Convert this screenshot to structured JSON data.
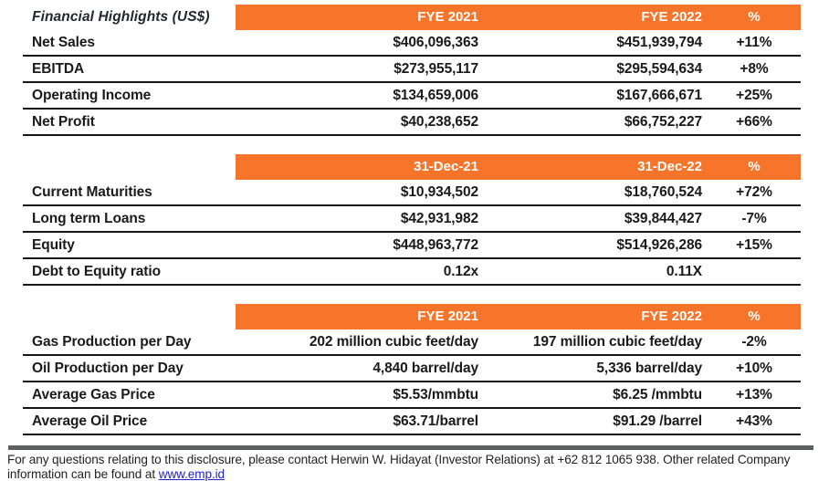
{
  "colors": {
    "accent_orange": "#F7752B",
    "line_black": "#151515",
    "footer_bar_gray": "#5E5F61",
    "link_blue": "#2222CC"
  },
  "tables": [
    {
      "title": "Financial Highlights (US$)",
      "headers": {
        "col1": "FYE 2021",
        "col2": "FYE 2022",
        "pct": "%"
      },
      "rows": [
        {
          "label": "Net Sales",
          "v1": "$406,096,363",
          "v2": "$451,939,794",
          "pct": "+11%"
        },
        {
          "label": "EBITDA",
          "v1": "$273,955,117",
          "v2": "$295,594,634",
          "pct": "+8%"
        },
        {
          "label": "Operating Income",
          "v1": "$134,659,006",
          "v2": "$167,666,671",
          "pct": "+25%"
        },
        {
          "label": "Net Profit",
          "v1": "$40,238,652",
          "v2": "$66,752,227",
          "pct": "+66%"
        }
      ]
    },
    {
      "title": "",
      "headers": {
        "col1": "31-Dec-21",
        "col2": "31-Dec-22",
        "pct": "%"
      },
      "rows": [
        {
          "label": "Current Maturities",
          "v1": "$10,934,502",
          "v2": "$18,760,524",
          "pct": "+72%"
        },
        {
          "label": "Long term Loans",
          "v1": "$42,931,982",
          "v2": "$39,844,427",
          "pct": "-7%"
        },
        {
          "label": "Equity",
          "v1": "$448,963,772",
          "v2": "$514,926,286",
          "pct": "+15%"
        },
        {
          "label": "Debt to Equity ratio",
          "v1": "0.12x",
          "v2": "0.11X",
          "pct": ""
        }
      ]
    },
    {
      "title": "",
      "headers": {
        "col1": "FYE 2021",
        "col2": "FYE 2022",
        "pct": "%"
      },
      "rows": [
        {
          "label": "Gas Production per Day",
          "v1": "202 million cubic feet/day",
          "v2": "197 million cubic feet/day",
          "pct": "-2%"
        },
        {
          "label": "Oil Production per Day",
          "v1": "4,840 barrel/day",
          "v2": "5,336 barrel/day",
          "pct": "+10%"
        },
        {
          "label": "Average Gas Price",
          "v1": "$5.53/mmbtu",
          "v2": "$6.25 /mmbtu",
          "pct": "+13%"
        },
        {
          "label": "Average Oil Price",
          "v1": "$63.71/barrel",
          "v2": "$91.29 /barrel",
          "pct": "+43%"
        }
      ]
    }
  ],
  "footer": {
    "text": "For any questions relating to this disclosure, please contact Herwin W. Hidayat (Investor Relations) at +62 812 1065 938. Other related Company information can be found at ",
    "link_text": "www.emp.id"
  }
}
